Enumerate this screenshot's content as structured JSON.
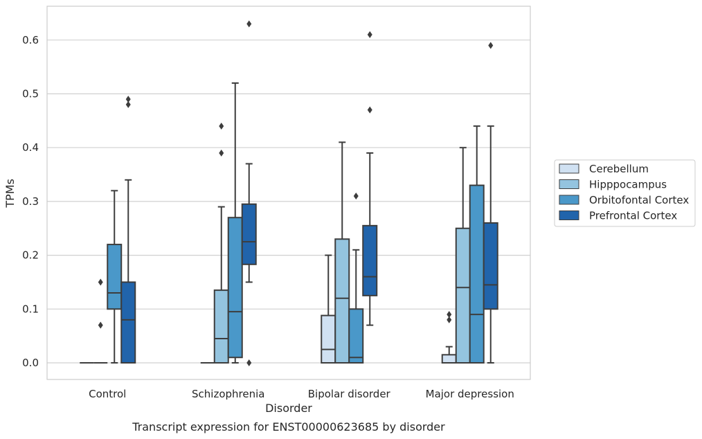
{
  "chart_data": {
    "type": "box",
    "caption": "Transcript expression for ENST00000623685 by disorder",
    "xlabel": "Disorder",
    "ylabel": "TPMs",
    "ylim": [
      -0.03,
      0.665
    ],
    "yticks": [
      0.0,
      0.1,
      0.2,
      0.3,
      0.4,
      0.5,
      0.6
    ],
    "ytick_labels": [
      "0.0",
      "0.1",
      "0.2",
      "0.3",
      "0.4",
      "0.5",
      "0.6"
    ],
    "grid": true,
    "legend_position": "right",
    "categories": [
      "Control",
      "Schizophrenia",
      "Bipolar disorder",
      "Major depression"
    ],
    "series": [
      {
        "name": "Cerebellum",
        "color": "#d0e1f2",
        "boxes": [
          {
            "min": 0.0,
            "q1": 0.0,
            "median": 0.0,
            "q3": 0.0,
            "max": 0.0,
            "outliers": []
          },
          {
            "min": 0.0,
            "q1": 0.0,
            "median": 0.0,
            "q3": 0.0,
            "max": 0.0,
            "outliers": []
          },
          {
            "min": 0.0,
            "q1": 0.0,
            "median": 0.025,
            "q3": 0.088,
            "max": 0.2,
            "outliers": []
          },
          {
            "min": 0.0,
            "q1": 0.0,
            "median": 0.0,
            "q3": 0.015,
            "max": 0.03,
            "outliers": [
              0.08,
              0.09
            ]
          }
        ]
      },
      {
        "name": "Hipppocampus",
        "color": "#94c4df",
        "boxes": [
          {
            "min": 0.0,
            "q1": 0.0,
            "median": 0.0,
            "q3": 0.0,
            "max": 0.0,
            "outliers": [
              0.07,
              0.15
            ]
          },
          {
            "min": 0.0,
            "q1": 0.0,
            "median": 0.045,
            "q3": 0.135,
            "max": 0.29,
            "outliers": [
              0.39,
              0.44
            ]
          },
          {
            "min": 0.0,
            "q1": 0.0,
            "median": 0.12,
            "q3": 0.23,
            "max": 0.41,
            "outliers": []
          },
          {
            "min": 0.0,
            "q1": 0.0,
            "median": 0.14,
            "q3": 0.25,
            "max": 0.4,
            "outliers": []
          }
        ]
      },
      {
        "name": "Orbitofontal Cortex",
        "color": "#4a98c9",
        "boxes": [
          {
            "min": 0.0,
            "q1": 0.1,
            "median": 0.13,
            "q3": 0.22,
            "max": 0.32,
            "outliers": []
          },
          {
            "min": 0.0,
            "q1": 0.01,
            "median": 0.095,
            "q3": 0.27,
            "max": 0.52,
            "outliers": []
          },
          {
            "min": 0.0,
            "q1": 0.0,
            "median": 0.01,
            "q3": 0.1,
            "max": 0.21,
            "outliers": [
              0.31
            ]
          },
          {
            "min": 0.0,
            "q1": 0.0,
            "median": 0.09,
            "q3": 0.33,
            "max": 0.44,
            "outliers": []
          }
        ]
      },
      {
        "name": "Prefrontal Cortex",
        "color": "#2164ab",
        "boxes": [
          {
            "min": 0.0,
            "q1": 0.0,
            "median": 0.08,
            "q3": 0.15,
            "max": 0.34,
            "outliers": [
              0.48,
              0.49
            ]
          },
          {
            "min": 0.15,
            "q1": 0.183,
            "median": 0.225,
            "q3": 0.295,
            "max": 0.37,
            "outliers": [
              0.0,
              0.63
            ]
          },
          {
            "min": 0.07,
            "q1": 0.125,
            "median": 0.16,
            "q3": 0.255,
            "max": 0.39,
            "outliers": [
              0.47,
              0.61
            ]
          },
          {
            "min": 0.0,
            "q1": 0.1,
            "median": 0.145,
            "q3": 0.26,
            "max": 0.44,
            "outliers": [
              0.59
            ]
          }
        ]
      }
    ]
  }
}
